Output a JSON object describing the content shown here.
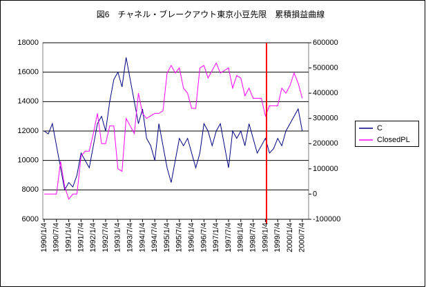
{
  "chart_data": {
    "type": "line",
    "title": "図6　チャネル・ブレークアウト東京小豆先限　累積損益曲線",
    "categories": [
      "1990/1/4",
      null,
      null,
      "1990/7/4",
      null,
      null,
      "1991/1/4",
      null,
      null,
      "1991/7/4",
      null,
      null,
      "1992/1/4",
      null,
      null,
      "1992/7/4",
      null,
      null,
      "1993/1/4",
      null,
      null,
      "1993/7/4",
      null,
      null,
      "1994/1/4",
      null,
      null,
      "1994/7/4",
      null,
      null,
      "1995/1/4",
      null,
      null,
      "1995/7/4",
      null,
      null,
      "1996/1/4",
      null,
      null,
      "1996/7/4",
      null,
      null,
      "1997/1/4",
      null,
      null,
      "1997/7/4",
      null,
      null,
      "1998/1/4",
      null,
      null,
      "1998/7/4",
      null,
      null,
      "1999/1/4",
      null,
      null,
      "1999/7/4",
      null,
      null,
      "2000/1/4",
      null,
      null,
      "2000/7/4"
    ],
    "series": [
      {
        "name": "C",
        "color": "#000080",
        "values": [
          12000,
          11800,
          12500,
          11000,
          9500,
          8000,
          8500,
          8200,
          9000,
          10500,
          10000,
          9500,
          11000,
          12500,
          13000,
          12000,
          14000,
          15500,
          16000,
          15000,
          17000,
          15500,
          14000,
          12500,
          13500,
          11500,
          11000,
          10000,
          12500,
          11000,
          9500,
          8500,
          10000,
          11500,
          11000,
          11500,
          10500,
          9500,
          10500,
          12500,
          12000,
          11000,
          12000,
          12500,
          11000,
          9500,
          12000,
          11500,
          12000,
          11000,
          12500,
          11500,
          10500,
          11000,
          11500,
          10500,
          10800,
          11500,
          11000,
          12000,
          12500,
          13000,
          13500,
          12000
        ]
      },
      {
        "name": "ClosedPL",
        "color": "#ff00ff",
        "axis": "y2",
        "values": [
          0,
          0,
          0,
          0,
          130000,
          30000,
          -20000,
          0,
          0,
          150000,
          170000,
          170000,
          240000,
          320000,
          200000,
          200000,
          270000,
          270000,
          100000,
          90000,
          300000,
          270000,
          240000,
          400000,
          320000,
          300000,
          310000,
          320000,
          320000,
          330000,
          480000,
          510000,
          480000,
          500000,
          420000,
          400000,
          340000,
          340000,
          500000,
          510000,
          460000,
          490000,
          520000,
          480000,
          490000,
          500000,
          420000,
          470000,
          460000,
          390000,
          420000,
          380000,
          380000,
          380000,
          310000,
          350000,
          350000,
          350000,
          420000,
          400000,
          430000,
          480000,
          440000,
          380000
        ]
      }
    ],
    "ylim": [
      6000,
      18000
    ],
    "yticks": [
      6000,
      8000,
      10000,
      12000,
      14000,
      16000,
      18000
    ],
    "y2lim": [
      -100000,
      600000
    ],
    "y2ticks": [
      -100000,
      0,
      100000,
      200000,
      300000,
      400000,
      500000,
      600000
    ],
    "grid": true
  }
}
